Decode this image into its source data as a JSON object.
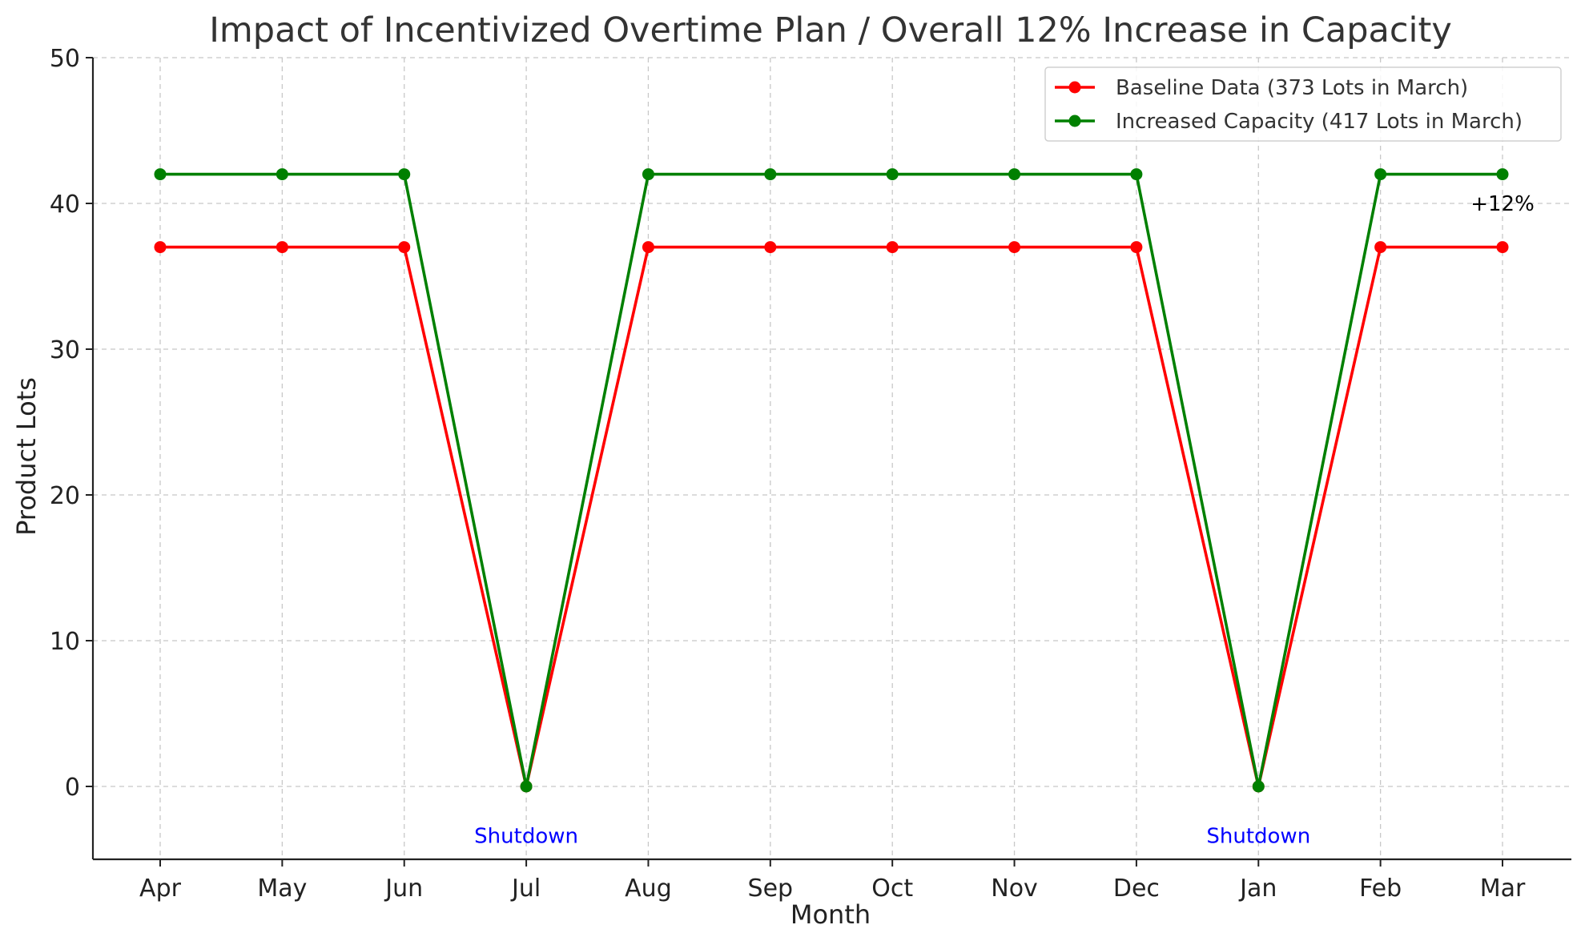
{
  "chart_data": {
    "type": "line",
    "title": "Impact of Incentivized Overtime Plan / Overall 12% Increase in Capacity",
    "xlabel": "Month",
    "ylabel": "Product Lots",
    "categories": [
      "Apr",
      "May",
      "Jun",
      "Jul",
      "Aug",
      "Sep",
      "Oct",
      "Nov",
      "Dec",
      "Jan",
      "Feb",
      "Mar"
    ],
    "ylim": [
      -5,
      50
    ],
    "yticks": [
      0,
      10,
      20,
      30,
      40,
      50
    ],
    "grid": true,
    "legend_position": "top-right",
    "series": [
      {
        "name": "Baseline Data (373 Lots in March)",
        "color": "#ff0000",
        "values": [
          37,
          37,
          37,
          0,
          37,
          37,
          37,
          37,
          37,
          0,
          37,
          37
        ]
      },
      {
        "name": "Increased Capacity (417 Lots in March)",
        "color": "#008000",
        "values": [
          42,
          42,
          42,
          0,
          42,
          42,
          42,
          42,
          42,
          0,
          42,
          42
        ]
      }
    ],
    "annotations": [
      {
        "text": "Shutdown",
        "x": "Jul",
        "y": -3,
        "color": "#0000ff"
      },
      {
        "text": "Shutdown",
        "x": "Jan",
        "y": -3,
        "color": "#0000ff"
      },
      {
        "text": "+12%",
        "x": "Mar",
        "y": 40,
        "color": "#000000"
      }
    ]
  }
}
